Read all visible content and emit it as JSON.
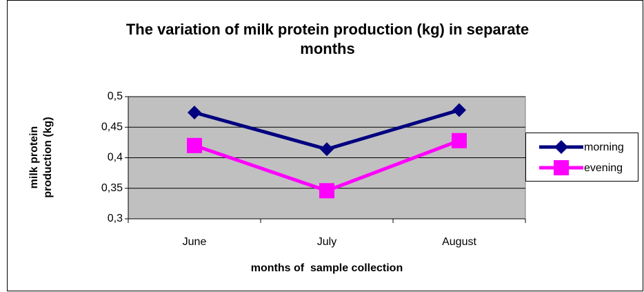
{
  "chart_data": {
    "type": "line",
    "title": [
      "The variation of milk protein production (kg) in separate",
      "months"
    ],
    "x_label": "months of  sample collection",
    "y_label": [
      "milk protein",
      "production (kg)"
    ],
    "categories": [
      "June",
      "July",
      "August"
    ],
    "series": [
      {
        "name": "morning",
        "color": "#000080",
        "marker": "diamond",
        "values": [
          0.474,
          0.414,
          0.478
        ]
      },
      {
        "name": "evening",
        "color": "#ff00ff",
        "marker": "square",
        "values": [
          0.42,
          0.346,
          0.428
        ]
      }
    ],
    "ylim": [
      0.3,
      0.5
    ],
    "yticks": [
      {
        "value": 0.3,
        "label": "0,3"
      },
      {
        "value": 0.35,
        "label": "0,35"
      },
      {
        "value": 0.4,
        "label": "0,4"
      },
      {
        "value": 0.45,
        "label": "0,45"
      },
      {
        "value": 0.5,
        "label": "0,5"
      }
    ],
    "grid": true,
    "legend": "right",
    "plot_background": "#c0c0c0"
  }
}
